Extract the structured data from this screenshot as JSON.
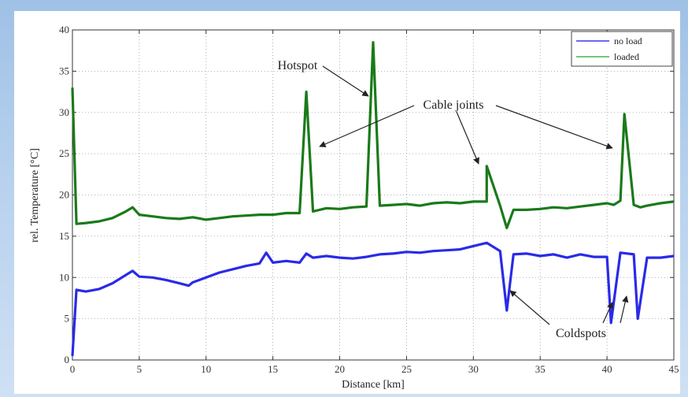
{
  "chart_data": {
    "type": "line",
    "title": "",
    "xlabel": "Distance [km]",
    "ylabel": "rel. Temperature [°C]",
    "xlim": [
      0,
      45
    ],
    "ylim": [
      0,
      40
    ],
    "x_ticks": [
      0,
      5,
      10,
      15,
      20,
      25,
      30,
      35,
      40,
      45
    ],
    "y_ticks": [
      0,
      5,
      10,
      15,
      20,
      25,
      30,
      35,
      40
    ],
    "grid": true,
    "legend_position": "top-right",
    "series": [
      {
        "name": "no load",
        "color": "#2a2ae8",
        "x": [
          0,
          0.3,
          1,
          2,
          3,
          4,
          4.5,
          5,
          6,
          7,
          8,
          8.7,
          9,
          10,
          11,
          12,
          13,
          14,
          14.5,
          15,
          16,
          17,
          17.5,
          18,
          19,
          20,
          21,
          22,
          23,
          24,
          25,
          26,
          27,
          28,
          29,
          30,
          31,
          32,
          32.5,
          33,
          34,
          35,
          36,
          37,
          38,
          39,
          40,
          40.3,
          41,
          42,
          42.3,
          43,
          44,
          45
        ],
        "y": [
          0.5,
          8.5,
          8.3,
          8.6,
          9.3,
          10.3,
          10.8,
          10.1,
          10.0,
          9.7,
          9.3,
          9.0,
          9.4,
          10.0,
          10.6,
          11.0,
          11.4,
          11.7,
          13.0,
          11.8,
          12.0,
          11.8,
          12.9,
          12.4,
          12.6,
          12.4,
          12.3,
          12.5,
          12.8,
          12.9,
          13.1,
          13.0,
          13.2,
          13.3,
          13.4,
          13.8,
          14.2,
          13.2,
          6.0,
          12.8,
          12.9,
          12.6,
          12.8,
          12.4,
          12.8,
          12.5,
          12.5,
          4.5,
          13.0,
          12.8,
          5.0,
          12.4,
          12.4,
          12.6
        ]
      },
      {
        "name": "loaded",
        "color": "#1a7a1a",
        "x": [
          0,
          0.3,
          1,
          2,
          3,
          4,
          4.5,
          5,
          6,
          7,
          8,
          9,
          10,
          11,
          12,
          13,
          14,
          15,
          16,
          17,
          17.5,
          18,
          19,
          20,
          21,
          22,
          22.5,
          23,
          24,
          25,
          26,
          27,
          28,
          29,
          30,
          31,
          31,
          32,
          32.5,
          33,
          34,
          35,
          36,
          37,
          38,
          39,
          40,
          40.5,
          41,
          41.3,
          42,
          42.5,
          43,
          44,
          45
        ],
        "y": [
          33.0,
          16.5,
          16.6,
          16.8,
          17.2,
          18.0,
          18.5,
          17.6,
          17.4,
          17.2,
          17.1,
          17.3,
          17.0,
          17.2,
          17.4,
          17.5,
          17.6,
          17.6,
          17.8,
          17.8,
          32.5,
          18.0,
          18.4,
          18.3,
          18.5,
          18.6,
          38.5,
          18.7,
          18.8,
          18.9,
          18.7,
          19.0,
          19.1,
          19.0,
          19.2,
          19.2,
          23.5,
          18.7,
          16.0,
          18.2,
          18.2,
          18.3,
          18.5,
          18.4,
          18.6,
          18.8,
          19.0,
          18.8,
          19.3,
          29.8,
          18.8,
          18.5,
          18.7,
          19.0,
          19.2
        ]
      }
    ],
    "annotations": [
      {
        "text": "Hotspot"
      },
      {
        "text": "Cable joints"
      },
      {
        "text": "Coldspots"
      }
    ]
  }
}
